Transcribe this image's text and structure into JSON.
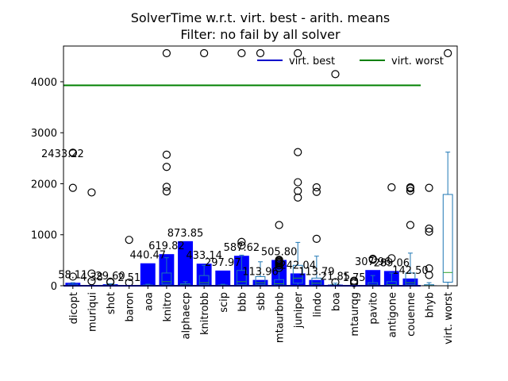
{
  "chart_data": {
    "type": "bar",
    "title": "SolverTime w.r.t. virt. best - arith. means",
    "subtitle": "Filter: no fail by all solver",
    "xlabel": "",
    "ylabel": "",
    "ylim": [
      0,
      4700
    ],
    "yticks": [
      0,
      1000,
      2000,
      3000,
      4000
    ],
    "grid": false,
    "legend_position": "top-right",
    "colors": {
      "bar": "#0000ff",
      "box": "#1f77b4",
      "median": "#2ca02c",
      "virt_best": "#0000cc",
      "virt_worst": "#008000"
    },
    "categories": [
      "dicopt",
      "muriqui",
      "shot",
      "baron",
      "aoa",
      "knitro",
      "alphaecp",
      "knitrobb",
      "scip",
      "bbb",
      "sbb",
      "mtaurbnb",
      "juniper",
      "lindo",
      "boa",
      "mtaurqg",
      "pavito",
      "antigone",
      "couenne",
      "bhyb",
      "virt. worst"
    ],
    "values": [
      58.11,
      4.38,
      29.6,
      2.51,
      440.47,
      619.82,
      873.85,
      433.14,
      297.97,
      587.62,
      113.96,
      505.8,
      242.04,
      113.79,
      21.85,
      1.75,
      307.96,
      289.06,
      142.5,
      9.0,
      null
    ],
    "value_labels": [
      "58.11",
      "4.38",
      "29.60",
      "2.51",
      "440.47",
      "619.82",
      "873.85",
      "433.14",
      "297.97",
      "587.62",
      "113.96",
      "505.80",
      "242.04",
      "113.79",
      "21.85",
      "1.75",
      "307.96",
      "289.06",
      "142.50",
      "",
      ""
    ],
    "series": [
      {
        "name": "virt. best",
        "type": "line",
        "value": 0
      },
      {
        "name": "virt. worst",
        "type": "line",
        "value": 3930
      }
    ],
    "boxes": [
      {
        "q1": 2,
        "median": 5,
        "q3": 30,
        "wlo": 0,
        "whi": 60,
        "outliers": [
          180,
          1920,
          2600,
          2610
        ]
      },
      {
        "q1": 1,
        "median": 2,
        "q3": 5,
        "wlo": 0,
        "whi": 10,
        "outliers": [
          90,
          240,
          1830
        ]
      },
      {
        "q1": 2,
        "median": 6,
        "q3": 20,
        "wlo": 0,
        "whi": 40,
        "outliers": [
          70,
          80
        ]
      },
      {
        "q1": 1,
        "median": 2,
        "q3": 4,
        "wlo": 0,
        "whi": 8,
        "outliers": [
          60,
          900
        ]
      },
      {
        "q1": 2,
        "median": 5,
        "q3": 15,
        "wlo": 0,
        "whi": 30,
        "outliers": []
      },
      {
        "q1": 30,
        "median": 80,
        "q3": 250,
        "wlo": 0,
        "whi": 550,
        "outliers": [
          1850,
          1940,
          2330,
          2570,
          4560
        ]
      },
      {
        "q1": 5,
        "median": 15,
        "q3": 40,
        "wlo": 0,
        "whi": 80,
        "outliers": []
      },
      {
        "q1": 20,
        "median": 60,
        "q3": 200,
        "wlo": 0,
        "whi": 400,
        "outliers": [
          4560
        ]
      },
      {
        "q1": 2,
        "median": 5,
        "q3": 15,
        "wlo": 0,
        "whi": 30,
        "outliers": []
      },
      {
        "q1": 20,
        "median": 80,
        "q3": 300,
        "wlo": 0,
        "whi": 600,
        "outliers": [
          790,
          860,
          4560
        ]
      },
      {
        "q1": 20,
        "median": 60,
        "q3": 180,
        "wlo": 0,
        "whi": 470,
        "outliers": [
          4560
        ]
      },
      {
        "q1": 10,
        "median": 40,
        "q3": 120,
        "wlo": 0,
        "whi": 300,
        "outliers": [
          350,
          400,
          430,
          450,
          470,
          490,
          510,
          1190
        ]
      },
      {
        "q1": 50,
        "median": 150,
        "q3": 400,
        "wlo": 0,
        "whi": 850,
        "outliers": [
          1730,
          1860,
          2030,
          2620,
          4560
        ]
      },
      {
        "q1": 10,
        "median": 50,
        "q3": 150,
        "wlo": 0,
        "whi": 580,
        "outliers": [
          920,
          1840,
          1930
        ]
      },
      {
        "q1": 2,
        "median": 6,
        "q3": 20,
        "wlo": 0,
        "whi": 50,
        "outliers": [
          70,
          4150
        ]
      },
      {
        "q1": 1,
        "median": 2,
        "q3": 5,
        "wlo": 0,
        "whi": 10,
        "outliers": [
          50,
          80,
          100
        ]
      },
      {
        "q1": 5,
        "median": 15,
        "q3": 60,
        "wlo": 0,
        "whi": 200,
        "outliers": [
          510,
          530
        ]
      },
      {
        "q1": 5,
        "median": 20,
        "q3": 80,
        "wlo": 0,
        "whi": 250,
        "outliers": [
          540,
          1930
        ]
      },
      {
        "q1": 20,
        "median": 60,
        "q3": 250,
        "wlo": 0,
        "whi": 640,
        "outliers": [
          1190,
          1860,
          1910,
          1930
        ]
      },
      {
        "q1": 1,
        "median": 3,
        "q3": 20,
        "wlo": 0,
        "whi": 60,
        "outliers": [
          210,
          340,
          1060,
          1120,
          1920
        ]
      },
      {
        "q1": 70,
        "median": 260,
        "q3": 1790,
        "wlo": 0,
        "whi": 2620,
        "outliers": [
          4560
        ]
      }
    ],
    "annotations": [
      {
        "text": "2433.22",
        "x_index": 0,
        "y": 2600
      }
    ]
  }
}
